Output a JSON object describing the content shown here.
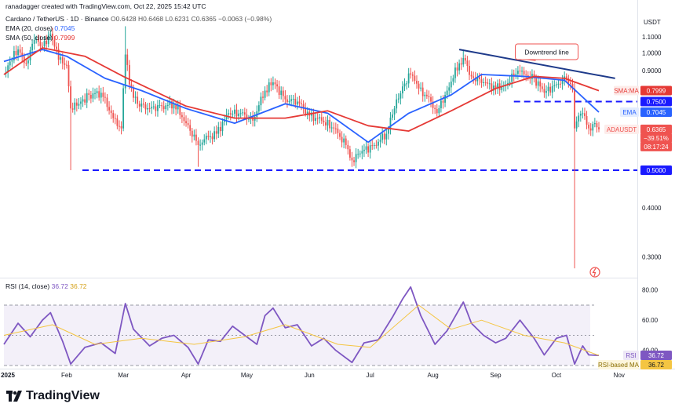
{
  "header": {
    "credit": "ranadagger created with TradingView.com, Oct 22, 2025 15:42 UTC",
    "symbol": "Cardano / TetherUS · 1D · Binance",
    "ohlc": "O0.6428 H0.6468 L0.6231 C0.6365 −0.0063 (−0.98%)",
    "ema_label": "EMA (20, close)",
    "ema_value": "0.7045",
    "sma_label": "SMA (50, close)",
    "sma_value": "0.7999",
    "rsi_label": "RSI (14, close)",
    "rsi_value": "36.72",
    "rsi_ma_value": "36.72"
  },
  "price_axis": {
    "currency": "USDT",
    "ticks": [
      "1.1000",
      "1.0000",
      "0.9000",
      "0.4000",
      "0.3000"
    ]
  },
  "rsi_axis": {
    "ticks": [
      "80.00",
      "60.00",
      "40.00"
    ]
  },
  "time_axis": {
    "labels": [
      "2025",
      "Feb",
      "Mar",
      "Apr",
      "May",
      "Jun",
      "Jul",
      "Aug",
      "Sep",
      "Oct",
      "Nov"
    ]
  },
  "badges": {
    "sma": {
      "label": "SMA:MA",
      "value": "0.7999"
    },
    "level_high": "0.7500",
    "ema": {
      "label": "EMA",
      "value": "0.7045"
    },
    "price": {
      "label": "ADAUSDT",
      "value": "0.6365",
      "change": "−39.51%",
      "countdown": "08:17:24"
    },
    "level_low": "0.5000",
    "rsi": {
      "label": "RSI",
      "value": "36.72"
    },
    "rsi_ma": {
      "label": "RSI-based MA",
      "value": "36.72"
    }
  },
  "annotation": {
    "label": "Downtrend line"
  },
  "branding": {
    "name": "TradingView"
  },
  "colors": {
    "up": "#26a69a",
    "down": "#ef5350",
    "ema": "#2962ff",
    "sma": "#e53935",
    "rsi": "#7e57c2",
    "rsi_ma": "#f4c542",
    "level": "#1a1aff",
    "trendline": "#1e3a8a"
  },
  "chart_data": [
    {
      "type": "candlestick",
      "title": "Cardano / TetherUS · 1D · Binance",
      "ylabel": "USDT",
      "ylim": [
        0.27,
        1.2
      ],
      "scale": "log",
      "grid": false,
      "x_range": [
        "2025-01-01",
        "2025-11-10"
      ],
      "candles": [
        {
          "date": "2025-01-01",
          "close": 0.89
        },
        {
          "date": "2025-01-04",
          "close": 0.95
        },
        {
          "date": "2025-01-08",
          "close": 1.02
        },
        {
          "date": "2025-01-12",
          "close": 0.94
        },
        {
          "date": "2025-01-16",
          "close": 1.08
        },
        {
          "date": "2025-01-20",
          "close": 1.04
        },
        {
          "date": "2025-01-24",
          "close": 1.12
        },
        {
          "date": "2025-01-28",
          "close": 0.96
        },
        {
          "date": "2025-02-01",
          "close": 0.93
        },
        {
          "date": "2025-02-03",
          "close": 0.72,
          "low": 0.5
        },
        {
          "date": "2025-02-07",
          "close": 0.74
        },
        {
          "date": "2025-02-12",
          "close": 0.78
        },
        {
          "date": "2025-02-18",
          "close": 0.79
        },
        {
          "date": "2025-02-24",
          "close": 0.68
        },
        {
          "date": "2025-02-28",
          "close": 0.64
        },
        {
          "date": "2025-03-02",
          "close": 0.99,
          "high": 1.17
        },
        {
          "date": "2025-03-04",
          "close": 0.83
        },
        {
          "date": "2025-03-08",
          "close": 0.74
        },
        {
          "date": "2025-03-14",
          "close": 0.72
        },
        {
          "date": "2025-03-20",
          "close": 0.73
        },
        {
          "date": "2025-03-26",
          "close": 0.74
        },
        {
          "date": "2025-04-01",
          "close": 0.66
        },
        {
          "date": "2025-04-07",
          "close": 0.58,
          "low": 0.51
        },
        {
          "date": "2025-04-10",
          "close": 0.6
        },
        {
          "date": "2025-04-16",
          "close": 0.62
        },
        {
          "date": "2025-04-22",
          "close": 0.7
        },
        {
          "date": "2025-04-28",
          "close": 0.7
        },
        {
          "date": "2025-05-04",
          "close": 0.67
        },
        {
          "date": "2025-05-10",
          "close": 0.8
        },
        {
          "date": "2025-05-14",
          "close": 0.84
        },
        {
          "date": "2025-05-20",
          "close": 0.76
        },
        {
          "date": "2025-05-26",
          "close": 0.75
        },
        {
          "date": "2025-06-01",
          "close": 0.69
        },
        {
          "date": "2025-06-07",
          "close": 0.67
        },
        {
          "date": "2025-06-13",
          "close": 0.64
        },
        {
          "date": "2025-06-19",
          "close": 0.58
        },
        {
          "date": "2025-06-22",
          "close": 0.53,
          "low": 0.51
        },
        {
          "date": "2025-06-27",
          "close": 0.56
        },
        {
          "date": "2025-07-03",
          "close": 0.58
        },
        {
          "date": "2025-07-09",
          "close": 0.62
        },
        {
          "date": "2025-07-13",
          "close": 0.72
        },
        {
          "date": "2025-07-17",
          "close": 0.82
        },
        {
          "date": "2025-07-21",
          "close": 0.88
        },
        {
          "date": "2025-07-25",
          "close": 0.81
        },
        {
          "date": "2025-07-31",
          "close": 0.75
        },
        {
          "date": "2025-08-03",
          "close": 0.7
        },
        {
          "date": "2025-08-08",
          "close": 0.8
        },
        {
          "date": "2025-08-14",
          "close": 0.94
        },
        {
          "date": "2025-08-16",
          "close": 0.97,
          "high": 1.02
        },
        {
          "date": "2025-08-20",
          "close": 0.87
        },
        {
          "date": "2025-08-26",
          "close": 0.84
        },
        {
          "date": "2025-09-01",
          "close": 0.81
        },
        {
          "date": "2025-09-06",
          "close": 0.83
        },
        {
          "date": "2025-09-12",
          "close": 0.9
        },
        {
          "date": "2025-09-15",
          "close": 0.88
        },
        {
          "date": "2025-09-20",
          "close": 0.86
        },
        {
          "date": "2025-09-25",
          "close": 0.79
        },
        {
          "date": "2025-10-01",
          "close": 0.83
        },
        {
          "date": "2025-10-06",
          "close": 0.86
        },
        {
          "date": "2025-10-09",
          "close": 0.81
        },
        {
          "date": "2025-10-10",
          "close": 0.64,
          "low": 0.28
        },
        {
          "date": "2025-10-12",
          "close": 0.69
        },
        {
          "date": "2025-10-14",
          "close": 0.7
        },
        {
          "date": "2025-10-17",
          "close": 0.64
        },
        {
          "date": "2025-10-20",
          "close": 0.66
        },
        {
          "date": "2025-10-22",
          "close": 0.6365
        }
      ],
      "overlays": [
        {
          "name": "EMA (20, close)",
          "points": [
            [
              "2025-01-01",
              0.95
            ],
            [
              "2025-01-20",
              1.02
            ],
            [
              "2025-02-01",
              0.98
            ],
            [
              "2025-02-20",
              0.86
            ],
            [
              "2025-03-10",
              0.8
            ],
            [
              "2025-04-01",
              0.72
            ],
            [
              "2025-04-25",
              0.66
            ],
            [
              "2025-05-20",
              0.74
            ],
            [
              "2025-06-10",
              0.7
            ],
            [
              "2025-06-30",
              0.59
            ],
            [
              "2025-07-20",
              0.7
            ],
            [
              "2025-08-10",
              0.78
            ],
            [
              "2025-08-25",
              0.88
            ],
            [
              "2025-09-15",
              0.87
            ],
            [
              "2025-10-05",
              0.85
            ],
            [
              "2025-10-22",
              0.7045
            ]
          ]
        },
        {
          "name": "SMA (50, close)",
          "points": [
            [
              "2025-01-01",
              0.88
            ],
            [
              "2025-01-20",
              1.03
            ],
            [
              "2025-02-10",
              0.98
            ],
            [
              "2025-03-01",
              0.87
            ],
            [
              "2025-04-01",
              0.73
            ],
            [
              "2025-04-25",
              0.68
            ],
            [
              "2025-05-20",
              0.68
            ],
            [
              "2025-06-10",
              0.71
            ],
            [
              "2025-06-30",
              0.65
            ],
            [
              "2025-07-20",
              0.63
            ],
            [
              "2025-08-10",
              0.71
            ],
            [
              "2025-09-01",
              0.81
            ],
            [
              "2025-09-20",
              0.87
            ],
            [
              "2025-10-05",
              0.86
            ],
            [
              "2025-10-22",
              0.7999
            ]
          ]
        }
      ],
      "horizontal_levels": [
        0.75,
        0.5
      ],
      "trendline": {
        "label": "Downtrend line",
        "from": [
          "2025-08-14",
          1.02
        ],
        "to": [
          "2025-10-30",
          0.86
        ]
      }
    },
    {
      "type": "line",
      "title": "RSI (14, close)",
      "ylim": [
        30,
        84
      ],
      "bands": [
        30,
        70
      ],
      "series": [
        {
          "name": "RSI",
          "points": [
            [
              "2025-01-01",
              44
            ],
            [
              "2025-01-08",
              58
            ],
            [
              "2025-01-14",
              49
            ],
            [
              "2025-01-20",
              60
            ],
            [
              "2025-01-24",
              65
            ],
            [
              "2025-01-30",
              46
            ],
            [
              "2025-02-03",
              31
            ],
            [
              "2025-02-10",
              42
            ],
            [
              "2025-02-18",
              45
            ],
            [
              "2025-02-25",
              38
            ],
            [
              "2025-03-02",
              71
            ],
            [
              "2025-03-06",
              54
            ],
            [
              "2025-03-14",
              43
            ],
            [
              "2025-03-20",
              48
            ],
            [
              "2025-03-26",
              50
            ],
            [
              "2025-04-02",
              42
            ],
            [
              "2025-04-07",
              31
            ],
            [
              "2025-04-12",
              47
            ],
            [
              "2025-04-18",
              46
            ],
            [
              "2025-04-24",
              56
            ],
            [
              "2025-04-30",
              50
            ],
            [
              "2025-05-06",
              44
            ],
            [
              "2025-05-10",
              63
            ],
            [
              "2025-05-14",
              68
            ],
            [
              "2025-05-20",
              55
            ],
            [
              "2025-05-26",
              57
            ],
            [
              "2025-06-02",
              43
            ],
            [
              "2025-06-08",
              48
            ],
            [
              "2025-06-14",
              40
            ],
            [
              "2025-06-22",
              32
            ],
            [
              "2025-06-28",
              45
            ],
            [
              "2025-07-05",
              47
            ],
            [
              "2025-07-12",
              62
            ],
            [
              "2025-07-17",
              74
            ],
            [
              "2025-07-21",
              82
            ],
            [
              "2025-07-26",
              63
            ],
            [
              "2025-08-02",
              44
            ],
            [
              "2025-08-08",
              53
            ],
            [
              "2025-08-16",
              72
            ],
            [
              "2025-08-20",
              58
            ],
            [
              "2025-08-26",
              50
            ],
            [
              "2025-09-01",
              45
            ],
            [
              "2025-09-06",
              48
            ],
            [
              "2025-09-13",
              60
            ],
            [
              "2025-09-20",
              48
            ],
            [
              "2025-09-25",
              37
            ],
            [
              "2025-10-01",
              48
            ],
            [
              "2025-10-06",
              50
            ],
            [
              "2025-10-10",
              31
            ],
            [
              "2025-10-14",
              43
            ],
            [
              "2025-10-17",
              37
            ],
            [
              "2025-10-22",
              36.72
            ]
          ]
        },
        {
          "name": "RSI-based MA",
          "points": [
            [
              "2025-01-01",
              50
            ],
            [
              "2025-01-25",
              57
            ],
            [
              "2025-02-15",
              44
            ],
            [
              "2025-03-10",
              48
            ],
            [
              "2025-04-05",
              44
            ],
            [
              "2025-04-30",
              49
            ],
            [
              "2025-05-20",
              57
            ],
            [
              "2025-06-15",
              44
            ],
            [
              "2025-07-01",
              42
            ],
            [
              "2025-07-25",
              70
            ],
            [
              "2025-08-10",
              54
            ],
            [
              "2025-08-25",
              60
            ],
            [
              "2025-09-15",
              50
            ],
            [
              "2025-10-05",
              45
            ],
            [
              "2025-10-22",
              36.72
            ]
          ]
        }
      ]
    }
  ]
}
